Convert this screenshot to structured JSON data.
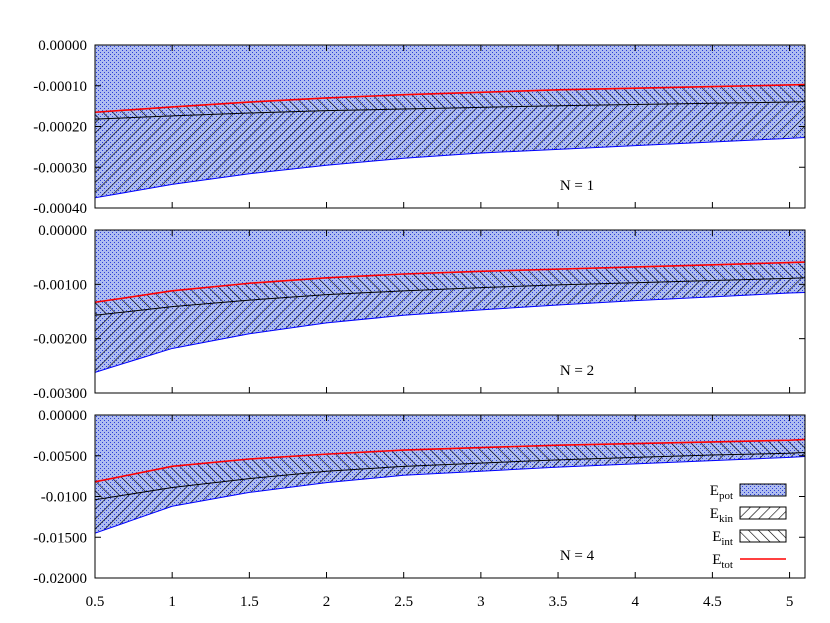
{
  "chart_data": {
    "type": "area",
    "x": [
      0.5,
      1,
      1.5,
      2,
      2.5,
      3,
      3.5,
      4,
      4.5,
      5,
      5.1
    ],
    "xlim": [
      0.5,
      5.1
    ],
    "x_ticks": [
      "0.5",
      "1",
      "1.5",
      "2",
      "2.5",
      "3",
      "3.5",
      "4",
      "4.5",
      "5"
    ],
    "x_tick_values": [
      0.5,
      1,
      1.5,
      2,
      2.5,
      3,
      3.5,
      4,
      4.5,
      5
    ],
    "legend": {
      "placement": "bottom-right (N = 4 panel)",
      "entries": [
        {
          "key": "pot",
          "base": "E",
          "sub": "pot"
        },
        {
          "key": "kin",
          "base": "E",
          "sub": "kin"
        },
        {
          "key": "int",
          "base": "E",
          "sub": "int"
        },
        {
          "key": "tot",
          "base": "E",
          "sub": "tot"
        }
      ]
    },
    "colors": {
      "pot": "#0000ff",
      "pot_fill": "#b7c3f2",
      "tot": "#ff0000",
      "hatch": "#000000"
    },
    "panels": [
      {
        "label": "N = 1",
        "ylim": [
          -0.0004,
          0
        ],
        "y_ticks": [
          "0.00000",
          "-0.00010",
          "-0.00020",
          "-0.00030",
          "-0.00040"
        ],
        "y_tick_values": [
          0,
          -0.0001,
          -0.0002,
          -0.0003,
          -0.0004
        ],
        "series": [
          {
            "key": "pot",
            "values": [
              -0.000375,
              -0.000342,
              -0.000316,
              -0.000295,
              -0.000278,
              -0.000265,
              -0.000256,
              -0.000247,
              -0.000238,
              -0.000229,
              -0.000227
            ]
          },
          {
            "key": "int",
            "values": [
              -0.000182,
              -0.000174,
              -0.000167,
              -0.000161,
              -0.000157,
              -0.000153,
              -0.000149,
              -0.000146,
              -0.000143,
              -0.00014,
              -0.000139
            ]
          },
          {
            "key": "tot",
            "values": [
              -0.000165,
              -0.000152,
              -0.00014,
              -0.00013,
              -0.000122,
              -0.000116,
              -0.00011,
              -0.000106,
              -0.000102,
              -9.8e-05,
              -9.7e-05
            ]
          }
        ]
      },
      {
        "label": "N = 2",
        "ylim": [
          -0.003,
          0
        ],
        "y_ticks": [
          "0.00000",
          "-0.00100",
          "-0.00200",
          "-0.00300"
        ],
        "y_tick_values": [
          0,
          -0.001,
          -0.002,
          -0.003
        ],
        "series": [
          {
            "key": "pot",
            "values": [
              -0.00262,
              -0.00218,
              -0.00191,
              -0.00171,
              -0.00157,
              -0.00147,
              -0.00138,
              -0.0013,
              -0.00123,
              -0.00116,
              -0.00115
            ]
          },
          {
            "key": "int",
            "values": [
              -0.00157,
              -0.00141,
              -0.00129,
              -0.00119,
              -0.00112,
              -0.00106,
              -0.00101,
              -0.00097,
              -0.00093,
              -0.00089,
              -0.00088
            ]
          },
          {
            "key": "tot",
            "values": [
              -0.00133,
              -0.00112,
              -0.00098,
              -0.00088,
              -0.00081,
              -0.00076,
              -0.00072,
              -0.00068,
              -0.00064,
              -0.0006,
              -0.00059
            ]
          }
        ]
      },
      {
        "label": "N = 4",
        "ylim": [
          -0.02,
          0
        ],
        "y_ticks": [
          "0.00000",
          "-0.00500",
          "-0.0100",
          "-0.01500",
          "-0.02000"
        ],
        "y_tick_values": [
          0,
          -0.005,
          -0.01,
          -0.015,
          -0.02
        ],
        "series": [
          {
            "key": "pot",
            "values": [
              -0.0145,
              -0.0112,
              -0.0095,
              -0.0083,
              -0.0074,
              -0.0069,
              -0.0064,
              -0.006,
              -0.0056,
              -0.0052,
              -0.0051
            ]
          },
          {
            "key": "int",
            "values": [
              -0.0104,
              -0.0089,
              -0.0078,
              -0.0069,
              -0.0063,
              -0.0059,
              -0.0055,
              -0.0052,
              -0.0049,
              -0.0047,
              -0.0046
            ]
          },
          {
            "key": "tot",
            "values": [
              -0.0082,
              -0.0063,
              -0.0054,
              -0.0048,
              -0.0043,
              -0.004,
              -0.0037,
              -0.0035,
              -0.0033,
              -0.0031,
              -0.003
            ]
          }
        ]
      }
    ]
  }
}
